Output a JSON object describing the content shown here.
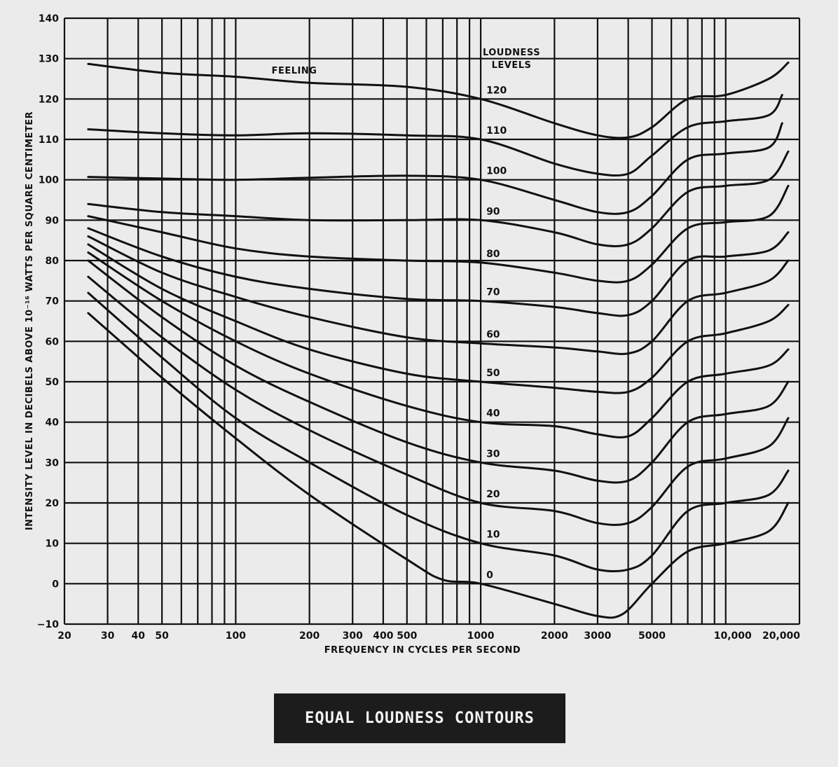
{
  "caption": "EQUAL LOUDNESS CONTOURS",
  "chart_data": {
    "type": "line",
    "title": "",
    "xlabel": "FREQUENCY IN CYCLES PER SECOND",
    "ylabel": "INTENSITY LEVEL IN DECIBELS ABOVE 10⁻¹⁶ WATTS PER SQUARE CENTIMETER",
    "x_scale": "log",
    "xlim": [
      20,
      20000
    ],
    "ylim": [
      -10,
      140
    ],
    "grid": true,
    "x_ticks": [
      20,
      30,
      40,
      50,
      100,
      200,
      300,
      400,
      500,
      1000,
      2000,
      3000,
      5000,
      10000,
      20000
    ],
    "x_tick_labels": [
      "20",
      "30",
      "40",
      "50",
      "100",
      "200",
      "300",
      "400",
      "500",
      "1000",
      "2000",
      "3000",
      "5000",
      "10,000",
      "20,000"
    ],
    "y_ticks": [
      -10,
      0,
      10,
      20,
      30,
      40,
      50,
      60,
      70,
      80,
      90,
      100,
      110,
      120,
      130,
      140
    ],
    "y_tick_labels": [
      "−10",
      "0",
      "10",
      "20",
      "30",
      "40",
      "50",
      "60",
      "70",
      "80",
      "90",
      "100",
      "110",
      "120",
      "130",
      "140"
    ],
    "annotations": {
      "feeling": "FEELING",
      "legend_title_1": "LOUDNESS",
      "legend_title_2": "LEVELS"
    },
    "series": [
      {
        "name": "120",
        "x": [
          25,
          50,
          100,
          200,
          500,
          1000,
          2000,
          3000,
          4000,
          5000,
          7000,
          10000,
          15000,
          18000
        ],
        "y": [
          128.7,
          126.5,
          125.5,
          124,
          123,
          120,
          114,
          111,
          110.5,
          113,
          120,
          121,
          125,
          129
        ]
      },
      {
        "name": "110",
        "x": [
          25,
          50,
          100,
          200,
          500,
          1000,
          2000,
          3000,
          4000,
          5000,
          7000,
          10000,
          15000,
          17000
        ],
        "y": [
          112.5,
          111.5,
          111,
          111.5,
          111,
          110,
          104,
          101.5,
          101.5,
          106,
          113,
          114.5,
          116,
          121
        ]
      },
      {
        "name": "100",
        "x": [
          25,
          50,
          100,
          200,
          500,
          1000,
          2000,
          3000,
          4000,
          5000,
          7000,
          10000,
          15000,
          17000
        ],
        "y": [
          100.7,
          100.3,
          100,
          100.5,
          101,
          100,
          95,
          92,
          92,
          96,
          105,
          106.5,
          108,
          114
        ]
      },
      {
        "name": "90",
        "x": [
          25,
          50,
          100,
          200,
          500,
          1000,
          2000,
          3000,
          4000,
          5000,
          7000,
          10000,
          15000,
          18000
        ],
        "y": [
          94,
          92,
          91,
          90,
          90,
          90,
          87,
          84,
          84,
          88,
          97,
          98.5,
          100,
          107
        ]
      },
      {
        "name": "80",
        "x": [
          25,
          50,
          100,
          200,
          500,
          1000,
          2000,
          3000,
          4000,
          5000,
          7000,
          10000,
          15000,
          18000
        ],
        "y": [
          91,
          87,
          83,
          81,
          80,
          79.5,
          77,
          75,
          75,
          79,
          88,
          89.5,
          91,
          98.5
        ]
      },
      {
        "name": "70",
        "x": [
          25,
          50,
          100,
          200,
          500,
          1000,
          2000,
          3000,
          4000,
          5000,
          7000,
          10000,
          15000,
          18000
        ],
        "y": [
          88,
          81,
          76,
          73,
          70.5,
          70,
          68.5,
          67,
          66.5,
          70,
          80,
          81,
          82.5,
          87
        ]
      },
      {
        "name": "60",
        "x": [
          25,
          50,
          100,
          200,
          500,
          1000,
          2000,
          3000,
          4000,
          5000,
          7000,
          10000,
          15000,
          18000
        ],
        "y": [
          86,
          77,
          71,
          66,
          61,
          59.5,
          58.5,
          57.5,
          57,
          60,
          70,
          72,
          75,
          80
        ]
      },
      {
        "name": "50",
        "x": [
          25,
          50,
          100,
          200,
          500,
          1000,
          2000,
          3000,
          4000,
          5000,
          7000,
          10000,
          15000,
          18000
        ],
        "y": [
          84,
          73,
          65,
          58,
          52,
          50,
          48.5,
          47.5,
          47.5,
          51,
          60,
          62,
          65,
          69
        ]
      },
      {
        "name": "40",
        "x": [
          25,
          50,
          100,
          200,
          500,
          1000,
          2000,
          3000,
          4000,
          5000,
          7000,
          10000,
          15000,
          18000
        ],
        "y": [
          82,
          70,
          60,
          52,
          44,
          40,
          39,
          37,
          36.5,
          41,
          50,
          52,
          54,
          58
        ]
      },
      {
        "name": "30",
        "x": [
          25,
          50,
          100,
          200,
          500,
          1000,
          2000,
          3000,
          4000,
          5000,
          7000,
          10000,
          15000,
          18000
        ],
        "y": [
          80,
          66,
          54,
          45,
          35,
          30,
          28,
          25.5,
          25.5,
          30,
          40,
          42,
          44,
          50
        ]
      },
      {
        "name": "20",
        "x": [
          25,
          50,
          100,
          200,
          500,
          1000,
          2000,
          3000,
          4000,
          5000,
          7000,
          10000,
          15000,
          18000
        ],
        "y": [
          76,
          61,
          48,
          38,
          27,
          20,
          18,
          15,
          15,
          19,
          29,
          31,
          34,
          41
        ]
      },
      {
        "name": "10",
        "x": [
          25,
          50,
          100,
          200,
          500,
          1000,
          2000,
          3000,
          4000,
          5000,
          7000,
          10000,
          15000,
          18000
        ],
        "y": [
          72,
          56,
          41,
          30,
          17,
          10,
          7,
          3.5,
          3.5,
          7,
          18,
          20,
          22,
          28
        ]
      },
      {
        "name": "0",
        "x": [
          25,
          50,
          100,
          200,
          500,
          700,
          1000,
          2000,
          3000,
          3800,
          5000,
          7000,
          10000,
          15000,
          18000
        ],
        "y": [
          67,
          51,
          36,
          22,
          6,
          1,
          0,
          -5,
          -8,
          -7.5,
          0,
          8,
          10,
          13,
          20
        ]
      }
    ]
  }
}
